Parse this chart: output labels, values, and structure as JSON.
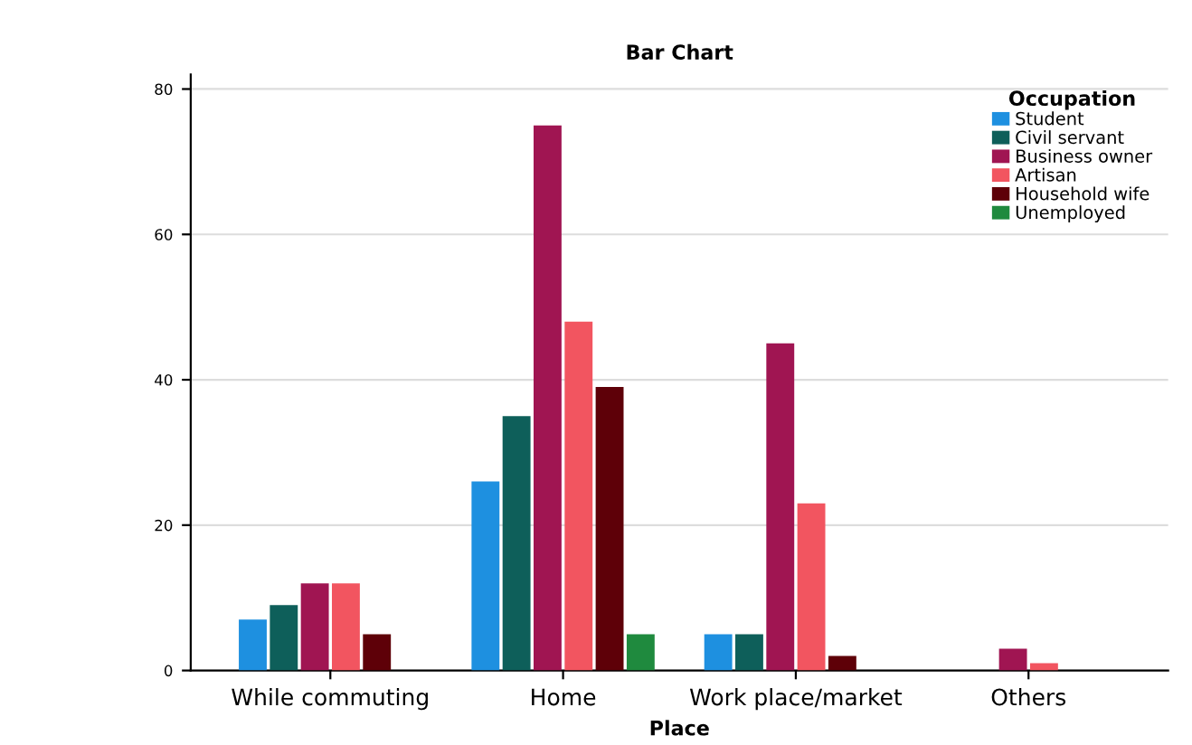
{
  "chart_data": {
    "type": "bar",
    "title": "Bar Chart",
    "xlabel": "Place",
    "legend_title": "Occupation",
    "categories": [
      "While commuting",
      "Home",
      "Work place/market",
      "Others"
    ],
    "series": [
      {
        "name": "Student",
        "color": "#1e90e0",
        "values": [
          7,
          26,
          5,
          0
        ]
      },
      {
        "name": "Civil servant",
        "color": "#0e5f5a",
        "values": [
          9,
          35,
          5,
          0
        ]
      },
      {
        "name": "Business owner",
        "color": "#a01552",
        "values": [
          12,
          75,
          45,
          3
        ]
      },
      {
        "name": "Artisan",
        "color": "#f25560",
        "values": [
          12,
          48,
          23,
          1
        ]
      },
      {
        "name": "Household wife",
        "color": "#5e0008",
        "values": [
          5,
          39,
          2,
          0
        ]
      },
      {
        "name": "Unemployed",
        "color": "#1f8a3e",
        "values": [
          0,
          5,
          0,
          0
        ]
      }
    ],
    "ylim": [
      0,
      82
    ],
    "yticks": [
      0,
      20,
      40,
      60,
      80
    ],
    "grid": "y",
    "legend": "top right"
  }
}
